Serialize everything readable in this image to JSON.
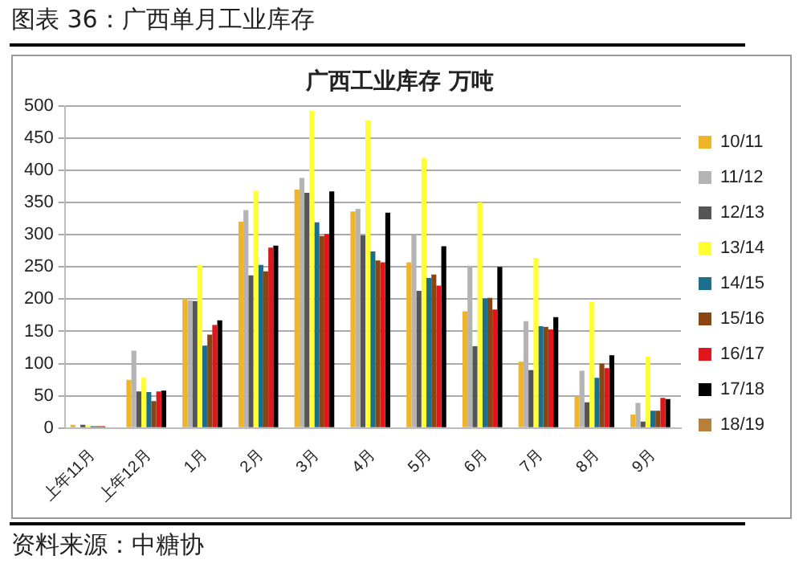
{
  "chart_data": {
    "type": "bar",
    "title": "广西工业库存 万吨",
    "subtitle": "图表 36：广西单月工业库存",
    "annotations": [
      "资料来源：中糖协"
    ],
    "categories": [
      "上年11月",
      "上年12月",
      "1月",
      "2月",
      "3月",
      "4月",
      "5月",
      "6月",
      "7月",
      "8月",
      "9月"
    ],
    "series": [
      {
        "name": "10/11",
        "color": "#f0b429",
        "values": [
          5,
          75,
          200,
          320,
          370,
          336,
          257,
          181,
          103,
          49,
          21
        ]
      },
      {
        "name": "11/12",
        "color": "#b4b4b4",
        "values": [
          null,
          120,
          198,
          338,
          388,
          340,
          299,
          252,
          166,
          89,
          39
        ]
      },
      {
        "name": "12/13",
        "color": "#555555",
        "values": [
          5,
          57,
          197,
          237,
          365,
          299,
          213,
          127,
          90,
          40,
          10
        ]
      },
      {
        "name": "13/14",
        "color": "#ffff33",
        "values": [
          4,
          78,
          253,
          368,
          492,
          477,
          419,
          350,
          264,
          196,
          111
        ]
      },
      {
        "name": "14/15",
        "color": "#1a6e8e",
        "values": [
          3,
          56,
          128,
          253,
          319,
          274,
          233,
          201,
          158,
          78,
          27
        ]
      },
      {
        "name": "15/16",
        "color": "#8b4513",
        "values": [
          3,
          42,
          145,
          243,
          298,
          260,
          238,
          202,
          157,
          100,
          27
        ]
      },
      {
        "name": "16/17",
        "color": "#e0161b",
        "values": [
          3,
          57,
          160,
          280,
          301,
          257,
          221,
          184,
          153,
          93,
          47
        ]
      },
      {
        "name": "17/18",
        "color": "#000000",
        "values": [
          null,
          58,
          167,
          283,
          367,
          334,
          282,
          250,
          172,
          113,
          45
        ]
      },
      {
        "name": "18/19",
        "color": "#b87f3c",
        "values": [
          null,
          null,
          null,
          null,
          null,
          null,
          null,
          null,
          null,
          null,
          null
        ]
      }
    ],
    "ylim": [
      0,
      500
    ],
    "yticks": [
      0,
      50,
      100,
      150,
      200,
      250,
      300,
      350,
      400,
      450,
      500
    ],
    "grid": "y",
    "legend": "right"
  }
}
